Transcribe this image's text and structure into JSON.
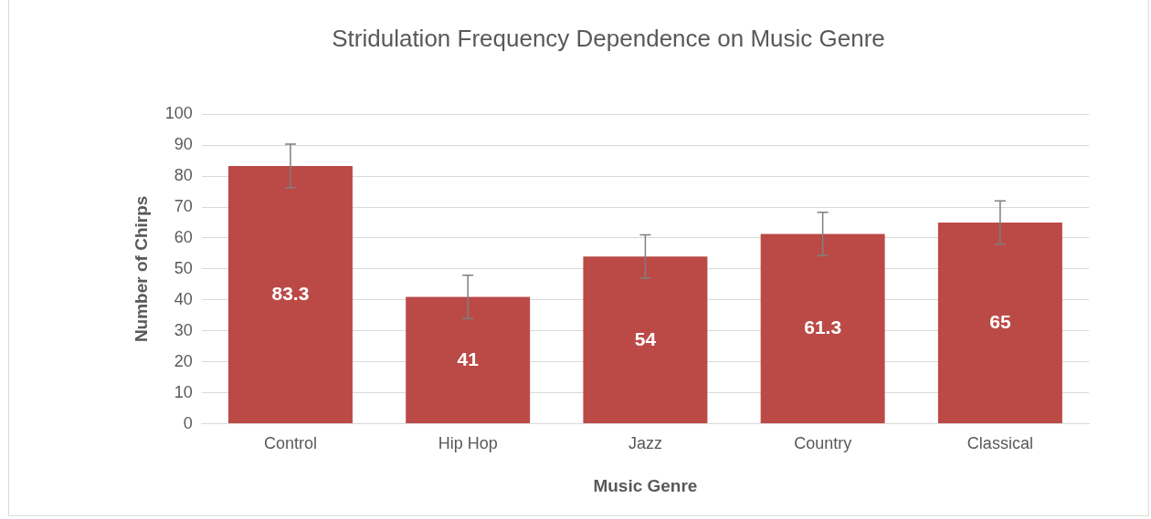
{
  "chart_data": {
    "type": "bar",
    "title": "Stridulation Frequency Dependence on Music Genre",
    "xlabel": "Music Genre",
    "ylabel": "Number of Chirps",
    "categories": [
      "Control",
      "Hip Hop",
      "Jazz",
      "Country",
      "Classical"
    ],
    "values": [
      83.3,
      41,
      54,
      61.3,
      65
    ],
    "errors": [
      7,
      7,
      7,
      7,
      7
    ],
    "color": "#bb4a47",
    "ylim": [
      0,
      100
    ],
    "yticks": [
      0,
      10,
      20,
      30,
      40,
      50,
      60,
      70,
      80,
      90,
      100
    ],
    "grid": "y",
    "legend": false,
    "data_labels": true
  }
}
